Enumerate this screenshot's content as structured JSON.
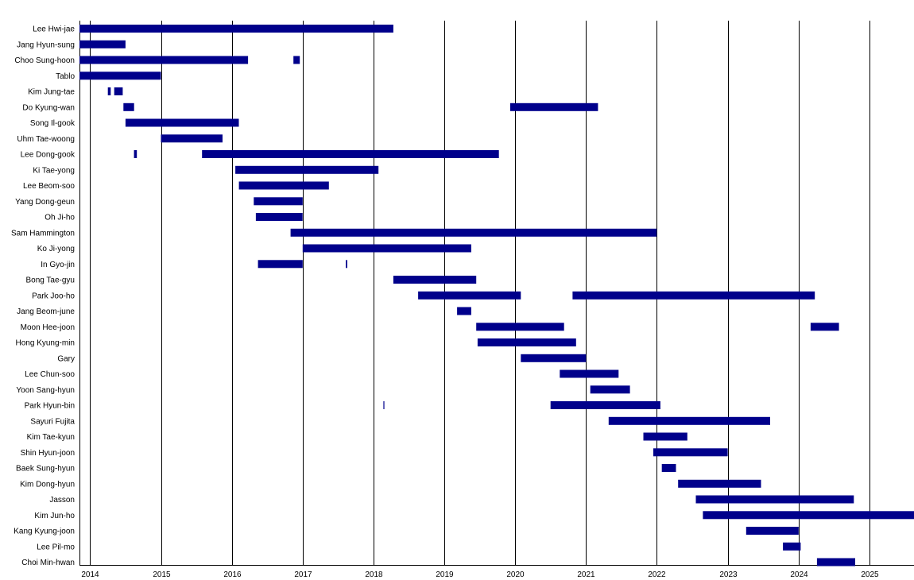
{
  "chart_data": {
    "type": "bar",
    "orientation": "horizontal-timeline",
    "title": "",
    "xlabel": "",
    "ylabel": "",
    "x_ticks": [
      "2014",
      "2015",
      "2016",
      "2017",
      "2018",
      "2019",
      "2020",
      "2021",
      "2022",
      "2023",
      "2024",
      "2025"
    ],
    "xlim": [
      2013.85,
      2025.63
    ],
    "grid": true,
    "bar_color": "#00008b",
    "rows": [
      {
        "name": "Lee Hwi-jae",
        "spans": [
          [
            2013.85,
            2018.28
          ]
        ]
      },
      {
        "name": "Jang Hyun-sung",
        "spans": [
          [
            2013.85,
            2014.5
          ]
        ]
      },
      {
        "name": "Choo Sung-hoon",
        "spans": [
          [
            2013.85,
            2016.23
          ],
          [
            2016.87,
            2016.96
          ]
        ]
      },
      {
        "name": "Tablo",
        "spans": [
          [
            2013.85,
            2015.0
          ]
        ]
      },
      {
        "name": "Kim Jung-tae",
        "spans": [
          [
            2014.25,
            2014.29
          ],
          [
            2014.34,
            2014.46
          ]
        ]
      },
      {
        "name": "Do Kyung-wan",
        "spans": [
          [
            2014.47,
            2014.62
          ],
          [
            2019.93,
            2021.17
          ]
        ]
      },
      {
        "name": "Song Il-gook",
        "spans": [
          [
            2014.5,
            2016.1
          ]
        ]
      },
      {
        "name": "Uhm Tae-woong",
        "spans": [
          [
            2015.0,
            2015.87
          ]
        ]
      },
      {
        "name": "Lee Dong-gook",
        "spans": [
          [
            2014.62,
            2014.66
          ],
          [
            2015.58,
            2019.77
          ]
        ]
      },
      {
        "name": "Ki Tae-yong",
        "spans": [
          [
            2016.05,
            2018.07
          ]
        ]
      },
      {
        "name": "Lee Beom-soo",
        "spans": [
          [
            2016.1,
            2017.37
          ]
        ]
      },
      {
        "name": "Yang Dong-geun",
        "spans": [
          [
            2016.31,
            2017.0
          ]
        ]
      },
      {
        "name": "Oh Ji-ho",
        "spans": [
          [
            2016.34,
            2017.0
          ]
        ]
      },
      {
        "name": "Sam Hammington",
        "spans": [
          [
            2016.83,
            2022.0
          ]
        ]
      },
      {
        "name": "Ko Ji-yong",
        "spans": [
          [
            2017.0,
            2019.38
          ]
        ]
      },
      {
        "name": "In Gyo-jin",
        "spans": [
          [
            2016.37,
            2017.0
          ],
          [
            2017.61,
            2017.63
          ]
        ]
      },
      {
        "name": "Bong Tae-gyu",
        "spans": [
          [
            2018.28,
            2019.45
          ]
        ]
      },
      {
        "name": "Park Joo-ho",
        "spans": [
          [
            2018.63,
            2020.08
          ],
          [
            2020.81,
            2024.23
          ]
        ]
      },
      {
        "name": "Jang Beom-june",
        "spans": [
          [
            2019.18,
            2019.38
          ]
        ]
      },
      {
        "name": "Moon Hee-joon",
        "spans": [
          [
            2019.45,
            2020.69
          ],
          [
            2024.17,
            2024.57
          ]
        ]
      },
      {
        "name": "Hong Kyung-min",
        "spans": [
          [
            2019.47,
            2020.86
          ]
        ]
      },
      {
        "name": "Gary",
        "spans": [
          [
            2020.08,
            2021.0
          ]
        ]
      },
      {
        "name": "Lee Chun-soo",
        "spans": [
          [
            2020.63,
            2021.46
          ]
        ]
      },
      {
        "name": "Yoon Sang-hyun",
        "spans": [
          [
            2021.06,
            2021.62
          ]
        ]
      },
      {
        "name": "Park Hyun-bin",
        "spans": [
          [
            2018.14,
            2018.15
          ],
          [
            2020.5,
            2022.05
          ]
        ]
      },
      {
        "name": "Sayuri Fujita",
        "spans": [
          [
            2021.32,
            2023.6
          ]
        ]
      },
      {
        "name": "Kim Tae-kyun",
        "spans": [
          [
            2021.81,
            2022.43
          ]
        ]
      },
      {
        "name": "Shin Hyun-joon",
        "spans": [
          [
            2021.95,
            2023.0
          ]
        ]
      },
      {
        "name": "Baek Sung-hyun",
        "spans": [
          [
            2022.07,
            2022.27
          ]
        ]
      },
      {
        "name": "Kim Dong-hyun",
        "spans": [
          [
            2022.3,
            2023.47
          ]
        ]
      },
      {
        "name": "Jasson",
        "spans": [
          [
            2022.55,
            2024.78
          ]
        ]
      },
      {
        "name": "Kim Jun-ho",
        "spans": [
          [
            2022.65,
            2025.63
          ]
        ]
      },
      {
        "name": "Kang Kyung-joon",
        "spans": [
          [
            2023.26,
            2024.0
          ]
        ]
      },
      {
        "name": "Lee Pil-mo",
        "spans": [
          [
            2023.78,
            2024.03
          ]
        ]
      },
      {
        "name": "Choi Min-hwan",
        "spans": [
          [
            2024.26,
            2024.8
          ]
        ]
      }
    ]
  }
}
